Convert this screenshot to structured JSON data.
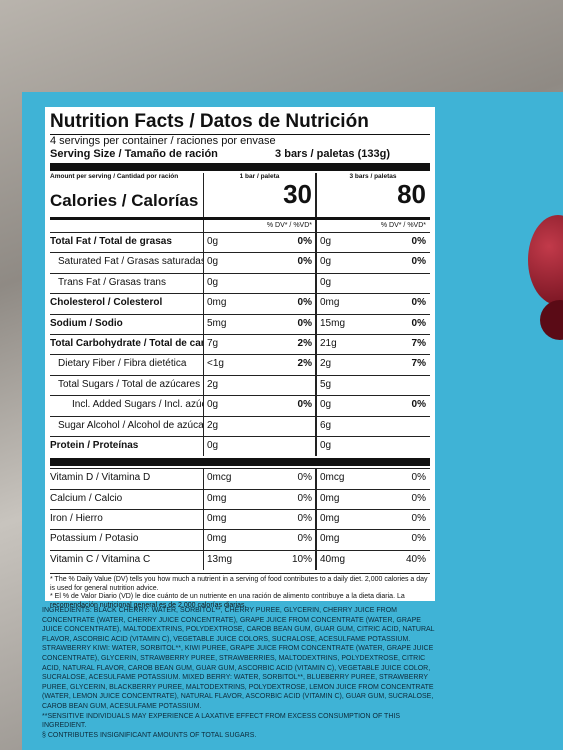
{
  "label": {
    "title": "Nutrition Facts / Datos de Nutrición",
    "servings": "4 servings per container / raciones por envase",
    "serving_size_label": "Serving Size / Tamaño de ración",
    "serving_size_value": "3 bars / paletas (133g)",
    "amount_per_serving": "Amount per serving / Cantidad por ración",
    "calories_label": "Calories / Calorías",
    "dv_header": "% DV* / %VD*",
    "columns": [
      {
        "header": "1 bar / paleta",
        "calories": 30
      },
      {
        "header": "3 bars / paletas",
        "calories": 80
      }
    ],
    "rows": [
      {
        "name": "Total Fat / Total de grasas",
        "values": [
          "0g",
          "0%",
          "0g",
          "0%"
        ]
      },
      {
        "name": "Saturated Fat / Grasas saturadas",
        "values": [
          "0g",
          "0%",
          "0g",
          "0%"
        ]
      },
      {
        "name": "Trans Fat / Grasas trans",
        "values": [
          "0g",
          null,
          "0g",
          null
        ]
      },
      {
        "name": "Cholesterol / Colesterol",
        "values": [
          "0mg",
          "0%",
          "0mg",
          "0%"
        ]
      },
      {
        "name": "Sodium / Sodio",
        "values": [
          "5mg",
          "0%",
          "15mg",
          "0%"
        ]
      },
      {
        "name": "Total Carbohydrate / Total de carbohidratos",
        "values": [
          "7g",
          "2%",
          "21g",
          "7%"
        ]
      },
      {
        "name": "Dietary Fiber / Fibra dietética",
        "values": [
          "<1g",
          "2%",
          "2g",
          "7%"
        ]
      },
      {
        "name": "Total Sugars / Total de azúcares",
        "values": [
          "2g",
          null,
          "5g",
          null
        ]
      },
      {
        "name": "Incl. Added Sugars / Incl. azúcares agregados",
        "values": [
          "0g",
          "0%",
          "0g",
          "0%"
        ]
      },
      {
        "name": "Sugar Alcohol / Alcohol de azúcar",
        "values": [
          "2g",
          null,
          "6g",
          null
        ]
      },
      {
        "name": "Protein / Proteínas",
        "values": [
          "0g",
          null,
          "0g",
          null
        ]
      }
    ],
    "vitamins": [
      {
        "name": "Vitamin D / Vitamina D",
        "values": [
          "0mcg",
          "0%",
          "0mcg",
          "0%"
        ]
      },
      {
        "name": "Calcium / Calcio",
        "values": [
          "0mg",
          "0%",
          "0mg",
          "0%"
        ]
      },
      {
        "name": "Iron / Hierro",
        "values": [
          "0mg",
          "0%",
          "0mg",
          "0%"
        ]
      },
      {
        "name": "Potassium / Potasio",
        "values": [
          "0mg",
          "0%",
          "0mg",
          "0%"
        ]
      },
      {
        "name": "Vitamin C / Vitamina C",
        "values": [
          "13mg",
          "10%",
          "40mg",
          "40%"
        ]
      }
    ],
    "footnotes": [
      "* The % Daily Value (DV) tells you how much a nutrient in a serving of food contributes to a daily diet. 2,000 calories a day is used for general nutrition advice.",
      "* El % de Valor Diario (VD) le dice cuánto de un nutriente en una ración de alimento contribuye a la dieta diaria. La recomendación nutricional general es de 2,000 calorías diarias."
    ]
  },
  "ingredients": "INGREDIENTS: BLACK CHERRY: WATER, SORBITOL**, CHERRY PUREE, GLYCERIN, CHERRY JUICE FROM CONCENTRATE (WATER, CHERRY JUICE CONCENTRATE), GRAPE JUICE FROM CONCENTRATE (WATER, GRAPE JUICE CONCENTRATE), MALTODEXTRINS, POLYDEXTROSE, CAROB BEAN GUM, GUAR GUM, CITRIC ACID, NATURAL FLAVOR, ASCORBIC ACID (VITAMIN C), VEGETABLE JUICE COLORS, SUCRALOSE, ACESULFAME POTASSIUM. STRAWBERRY KIWI: WATER, SORBITOL**, KIWI PUREE, GRAPE JUICE FROM CONCENTRATE (WATER, GRAPE JUICE CONCENTRATE), GLYCERIN, STRAWBERRY PUREE, STRAWBERRIES, MALTODEXTRINS, POLYDEXTROSE, CITRIC ACID, NATURAL FLAVOR, CAROB BEAN GUM, GUAR GUM, ASCORBIC ACID (VITAMIN C), VEGETABLE JUICE COLOR, SUCRALOSE, ACESULFAME POTASSIUM. MIXED BERRY: WATER, SORBITOL**, BLUEBERRY PUREE, STRAWBERRY PUREE, GLYCERIN, BLACKBERRY PUREE, MALTODEXTRINS, POLYDEXTROSE, LEMON JUICE FROM CONCENTRATE (WATER, LEMON JUICE CONCENTRATE), NATURAL FLAVOR, ASCORBIC ACID (VITAMIN C), GUAR GUM, SUCRALOSE, CAROB BEAN GUM, ACESULFAME POTASSIUM.",
  "warnings": [
    "**SENSITIVE INDIVIDUALS MAY EXPERIENCE A LAXATIVE EFFECT FROM EXCESS CONSUMPTION OF THIS INGREDIENT.",
    "§ CONTRIBUTES INSIGNIFICANT AMOUNTS OF TOTAL SUGARS."
  ]
}
